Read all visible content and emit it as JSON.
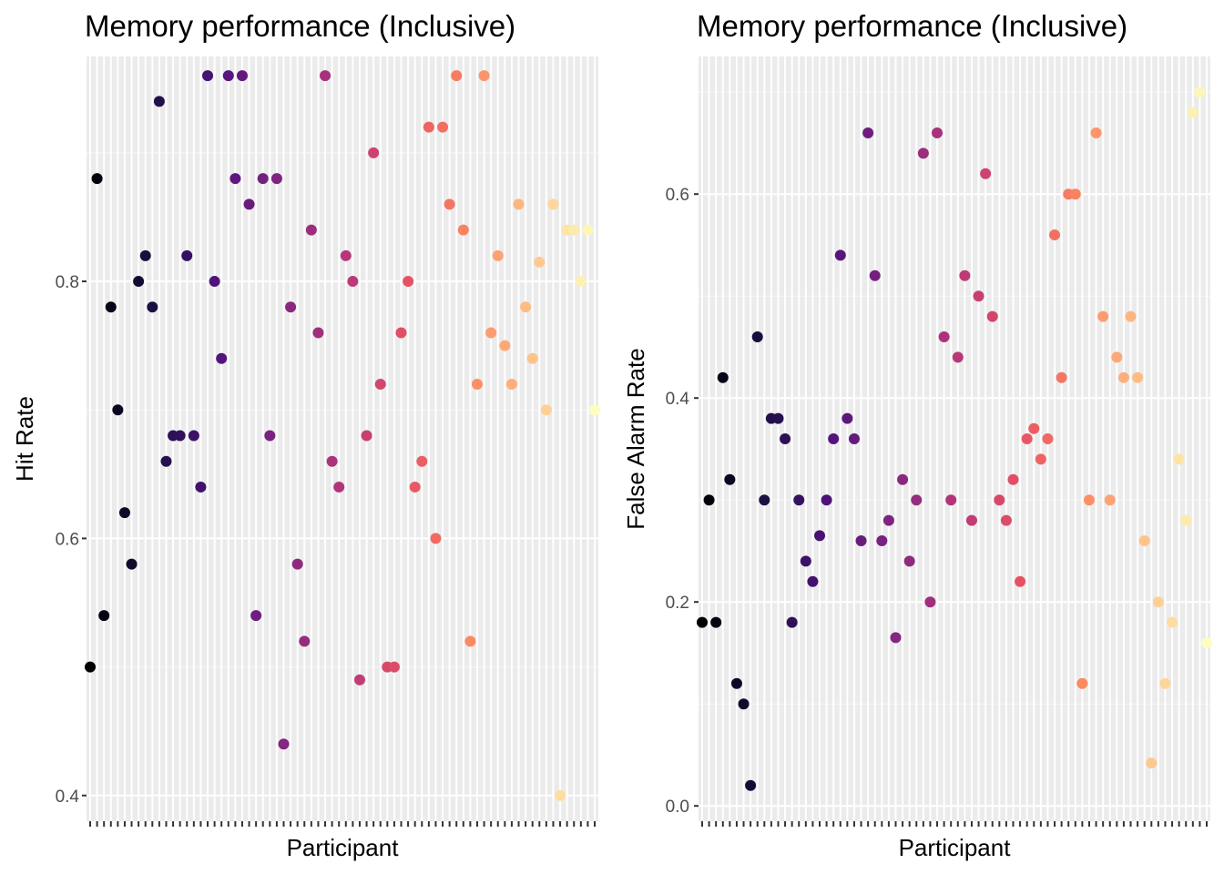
{
  "chart_data": [
    {
      "type": "scatter",
      "title": "Memory performance (Inclusive)",
      "xlabel": "Participant",
      "ylabel": "Hit Rate",
      "ylim": [
        0.38,
        0.975
      ],
      "yticks": [
        0.4,
        0.6,
        0.8
      ],
      "ytick_labels": [
        "0.4",
        "0.6",
        "0.8"
      ],
      "x_tick_labels_shown": false,
      "grid": true,
      "legend": "none",
      "color_scale": "magma (dark purple to light yellow by participant)",
      "n_participants": 74,
      "values": [
        0.5,
        0.88,
        0.54,
        0.78,
        0.7,
        0.62,
        0.58,
        0.8,
        0.82,
        0.78,
        0.94,
        0.66,
        0.68,
        0.68,
        0.82,
        0.68,
        0.64,
        0.96,
        0.8,
        0.74,
        0.96,
        0.88,
        0.96,
        0.86,
        0.54,
        0.88,
        0.68,
        0.88,
        0.44,
        0.78,
        0.58,
        0.52,
        0.84,
        0.76,
        0.96,
        0.66,
        0.64,
        0.82,
        0.8,
        0.49,
        0.68,
        0.9,
        0.72,
        0.5,
        0.5,
        0.76,
        0.8,
        0.64,
        0.66,
        0.92,
        0.6,
        0.92,
        0.86,
        0.96,
        0.84,
        0.52,
        0.72,
        0.96,
        0.76,
        0.82,
        0.75,
        0.72,
        0.86,
        0.78,
        0.74,
        0.815,
        0.7,
        0.86,
        0.4,
        0.84,
        0.84,
        0.8,
        0.84,
        0.7
      ]
    },
    {
      "type": "scatter",
      "title": "Memory performance (Inclusive)",
      "xlabel": "Participant",
      "ylabel": "False Alarm Rate",
      "ylim": [
        -0.015,
        0.735
      ],
      "yticks": [
        0.0,
        0.2,
        0.4,
        0.6
      ],
      "ytick_labels": [
        "0.0",
        "0.2",
        "0.4",
        "0.6"
      ],
      "x_tick_labels_shown": false,
      "grid": true,
      "legend": "none",
      "color_scale": "magma (dark purple to light yellow by participant)",
      "n_participants": 74,
      "values": [
        0.18,
        0.3,
        0.18,
        0.42,
        0.32,
        0.12,
        0.1,
        0.02,
        0.46,
        0.3,
        0.38,
        0.38,
        0.36,
        0.18,
        0.3,
        0.24,
        0.22,
        0.265,
        0.3,
        0.36,
        0.54,
        0.38,
        0.36,
        0.26,
        0.66,
        0.52,
        0.26,
        0.28,
        0.165,
        0.32,
        0.24,
        0.3,
        0.64,
        0.2,
        0.66,
        0.46,
        0.3,
        0.44,
        0.52,
        0.28,
        0.5,
        0.62,
        0.48,
        0.3,
        0.28,
        0.32,
        0.22,
        0.36,
        0.37,
        0.34,
        0.36,
        0.56,
        0.42,
        0.6,
        0.6,
        0.12,
        0.3,
        0.66,
        0.48,
        0.3,
        0.44,
        0.42,
        0.48,
        0.42,
        0.26,
        0.042,
        0.2,
        0.12,
        0.18,
        0.34,
        0.28,
        0.68,
        0.7,
        0.16
      ]
    }
  ]
}
